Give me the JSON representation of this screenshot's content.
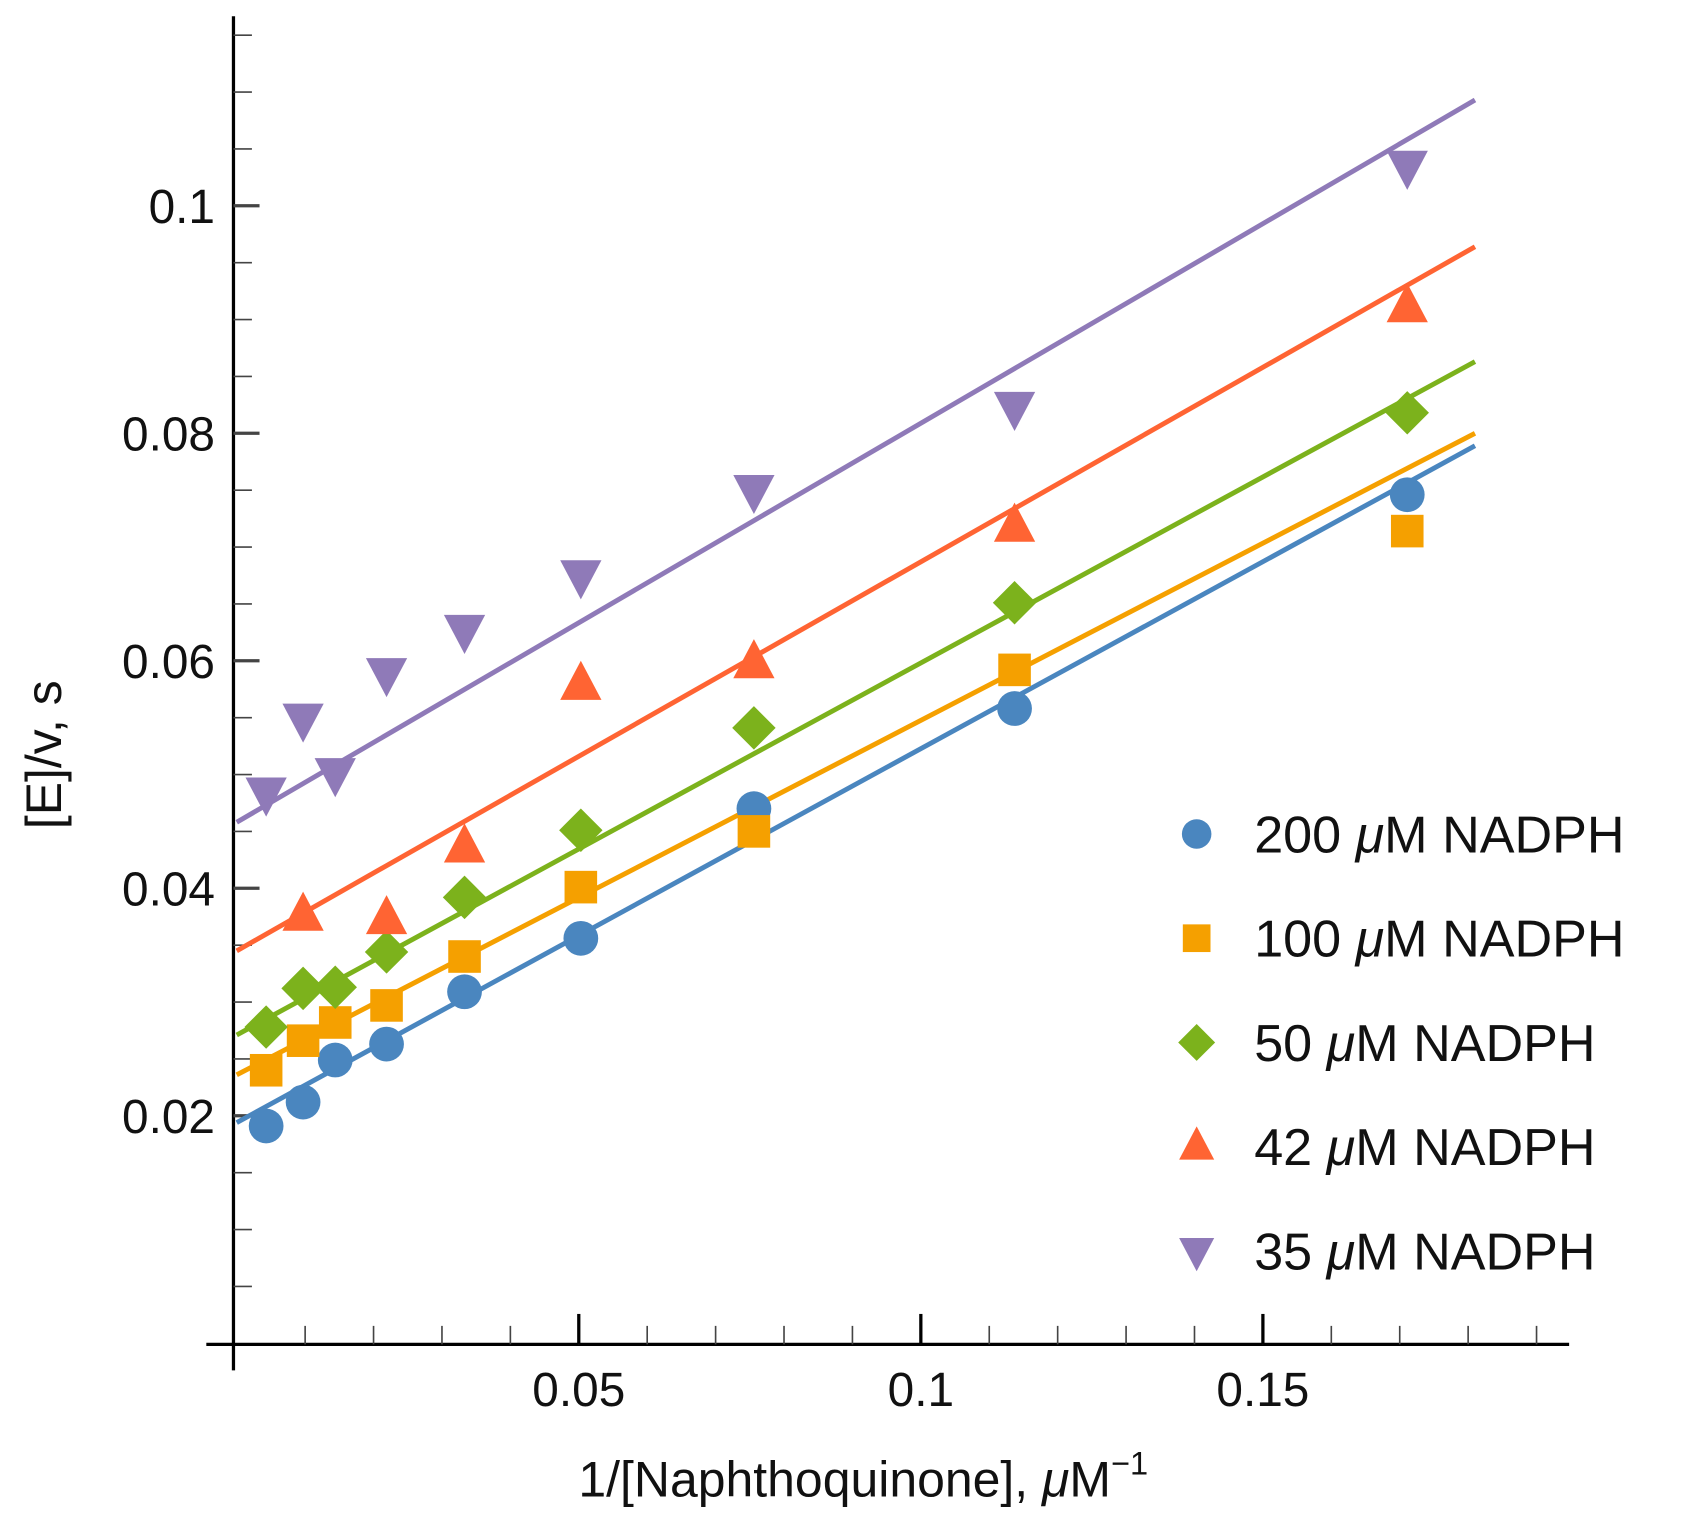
{
  "chart_data": {
    "type": "scatter",
    "title": "",
    "xlabel": "1/[Naphthoquinone], μM⁻¹",
    "xlabel_parts": {
      "pre": "1/[Naphthoquinone], ",
      "mu": "μ",
      "post": "M",
      "sup": "−1"
    },
    "ylabel": "[E]/v, s",
    "ylabel_parts": {
      "pre": "[E]/",
      "v": "v",
      "post": ", s"
    },
    "xlim": [
      0,
      0.19
    ],
    "ylim": [
      0,
      0.115
    ],
    "xticks": [
      {
        "v": 0.05,
        "label": "0.05"
      },
      {
        "v": 0.1,
        "label": "0.1"
      },
      {
        "v": 0.15,
        "label": "0.15"
      }
    ],
    "yticks": [
      {
        "v": 0.02,
        "label": "0.02"
      },
      {
        "v": 0.04,
        "label": "0.04"
      },
      {
        "v": 0.06,
        "label": "0.06"
      },
      {
        "v": 0.08,
        "label": "0.08"
      },
      {
        "v": 0.1,
        "label": "0.1"
      }
    ],
    "x_minor_step": 0.01,
    "y_minor_step": 0.005,
    "grid": false,
    "legend_position": "right",
    "series": [
      {
        "name": "200 μM NADPH",
        "num": "200 ",
        "mu": "μ",
        "rest": "M NADPH",
        "marker": "circle",
        "color": "#4a86bf",
        "x": [
          0.0043,
          0.0097,
          0.0144,
          0.0219,
          0.0333,
          0.0503,
          0.0756,
          0.1137,
          0.1711
        ],
        "y": [
          0.0191,
          0.0212,
          0.0249,
          0.0263,
          0.0309,
          0.0356,
          0.047,
          0.0558,
          0.0746
        ],
        "fit": {
          "x": [
            0,
            0.181
          ],
          "y": [
            0.0194,
            0.0789
          ]
        }
      },
      {
        "name": "100 μM NADPH",
        "num": "100 ",
        "mu": "μ",
        "rest": "M NADPH",
        "marker": "square",
        "color": "#f5a000",
        "x": [
          0.0043,
          0.0097,
          0.0144,
          0.0219,
          0.0333,
          0.0503,
          0.0756,
          0.1137,
          0.1711
        ],
        "y": [
          0.024,
          0.0266,
          0.0282,
          0.0297,
          0.034,
          0.0401,
          0.045,
          0.0592,
          0.0714
        ],
        "fit": {
          "x": [
            0,
            0.181
          ],
          "y": [
            0.0236,
            0.08
          ]
        }
      },
      {
        "name": "50 μM NADPH",
        "num": "50 ",
        "mu": "μ",
        "rest": "M NADPH",
        "marker": "diamond",
        "color": "#7cb21c",
        "x": [
          0.0043,
          0.0097,
          0.0144,
          0.0219,
          0.0333,
          0.0503,
          0.0756,
          0.1137,
          0.1711
        ],
        "y": [
          0.0278,
          0.0312,
          0.0313,
          0.0344,
          0.0392,
          0.0451,
          0.0541,
          0.0651,
          0.0818
        ],
        "fit": {
          "x": [
            0,
            0.181
          ],
          "y": [
            0.0271,
            0.0863
          ]
        }
      },
      {
        "name": "42 μM NADPH",
        "num": "42 ",
        "mu": "μ",
        "rest": "M NADPH",
        "marker": "triangle-up",
        "color": "#ff6433",
        "x": [
          0.0097,
          0.0219,
          0.0333,
          0.0503,
          0.0756,
          0.1137,
          0.1711
        ],
        "y": [
          0.0376,
          0.0373,
          0.0436,
          0.0579,
          0.0598,
          0.0718,
          0.0911
        ],
        "fit": {
          "x": [
            0,
            0.181
          ],
          "y": [
            0.0345,
            0.0964
          ]
        }
      },
      {
        "name": "35 μM NADPH",
        "num": "35 ",
        "mu": "μ",
        "rest": "M NADPH",
        "marker": "triangle-down",
        "color": "#8f7ab8",
        "x": [
          0.0043,
          0.0097,
          0.0144,
          0.0219,
          0.0333,
          0.0503,
          0.0756,
          0.1137,
          0.1711
        ],
        "y": [
          0.0484,
          0.0549,
          0.0501,
          0.0589,
          0.0627,
          0.0675,
          0.075,
          0.0823,
          0.1035
        ],
        "fit": {
          "x": [
            0,
            0.181
          ],
          "y": [
            0.0458,
            0.1093
          ]
        }
      }
    ]
  }
}
